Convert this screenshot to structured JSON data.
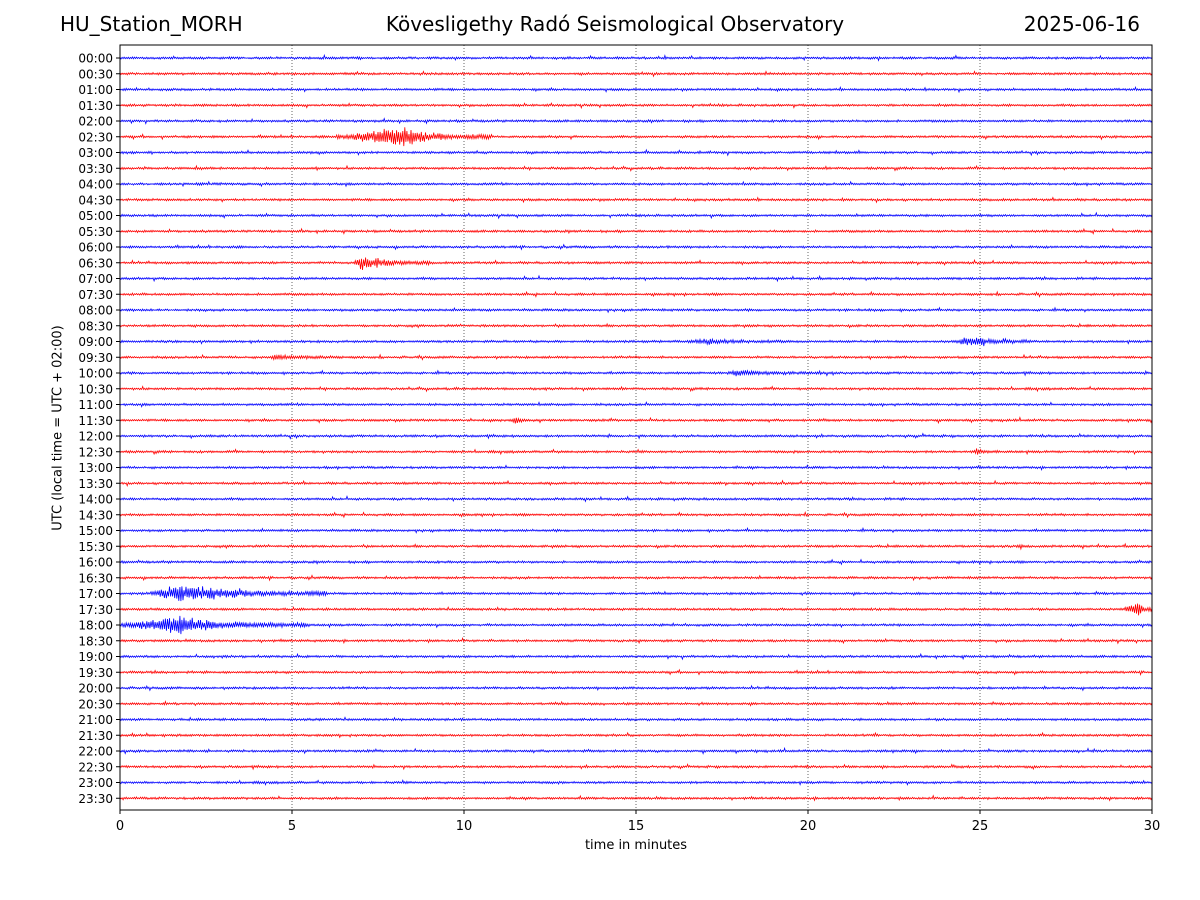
{
  "header": {
    "station": "HU_Station_MORH",
    "observatory": "Kövesligethy Radó Seismological Observatory",
    "date": "2025-06-16"
  },
  "chart_data": {
    "type": "line",
    "title": "Kövesligethy Radó Seismological Observatory",
    "xlabel": "time in minutes",
    "ylabel": "UTC (local time = UTC + 02:00)",
    "xlim": [
      0,
      30
    ],
    "x_ticks": [
      "0",
      "5",
      "10",
      "15",
      "20",
      "25",
      "30"
    ],
    "grid": "vertical dotted lines at 5-minute ticks",
    "row_colors": [
      "#0000ff",
      "#ff0000"
    ],
    "rows": [
      "00:00",
      "00:30",
      "01:00",
      "01:30",
      "02:00",
      "02:30",
      "03:00",
      "03:30",
      "04:00",
      "04:30",
      "05:00",
      "05:30",
      "06:00",
      "06:30",
      "07:00",
      "07:30",
      "08:00",
      "08:30",
      "09:00",
      "09:30",
      "10:00",
      "10:30",
      "11:00",
      "11:30",
      "12:00",
      "12:30",
      "13:00",
      "13:30",
      "14:00",
      "14:30",
      "15:00",
      "15:30",
      "16:00",
      "16:30",
      "17:00",
      "17:30",
      "18:00",
      "18:30",
      "19:00",
      "19:30",
      "20:00",
      "20:30",
      "21:00",
      "21:30",
      "22:00",
      "22:30",
      "23:00",
      "23:30"
    ],
    "events": [
      {
        "row": "02:30",
        "start_min": 6.3,
        "end_min": 10.8,
        "peak_min": 8.2,
        "amplitude": 1.0
      },
      {
        "row": "06:30",
        "start_min": 6.8,
        "end_min": 9.0,
        "peak_min": 7.0,
        "amplitude": 0.8
      },
      {
        "row": "09:00",
        "start_min": 16.5,
        "end_min": 19.5,
        "peak_min": 17.0,
        "amplitude": 0.25
      },
      {
        "row": "09:00",
        "start_min": 24.3,
        "end_min": 26.5,
        "peak_min": 24.6,
        "amplitude": 0.55
      },
      {
        "row": "09:30",
        "start_min": 4.3,
        "end_min": 6.5,
        "peak_min": 4.6,
        "amplitude": 0.25
      },
      {
        "row": "10:00",
        "start_min": 17.7,
        "end_min": 20.5,
        "peak_min": 17.9,
        "amplitude": 0.3
      },
      {
        "row": "11:30",
        "start_min": 11.4,
        "end_min": 11.8,
        "peak_min": 11.5,
        "amplitude": 0.35
      },
      {
        "row": "12:30",
        "start_min": 24.8,
        "end_min": 25.5,
        "peak_min": 24.9,
        "amplitude": 0.3
      },
      {
        "row": "15:30",
        "start_min": 26.1,
        "end_min": 26.4,
        "peak_min": 26.2,
        "amplitude": 0.25
      },
      {
        "row": "17:00",
        "start_min": 0.9,
        "end_min": 6.0,
        "peak_min": 1.7,
        "amplitude": 1.0
      },
      {
        "row": "17:30",
        "start_min": 29.2,
        "end_min": 30.0,
        "peak_min": 29.6,
        "amplitude": 0.9
      },
      {
        "row": "18:00",
        "start_min": 0.0,
        "end_min": 5.5,
        "peak_min": 1.7,
        "amplitude": 0.9
      }
    ]
  }
}
